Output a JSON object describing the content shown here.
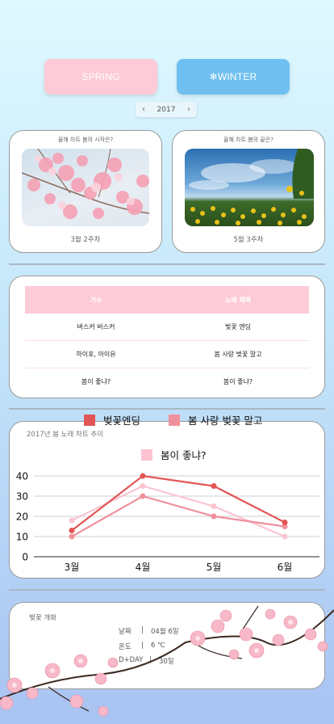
{
  "season_buttons": {
    "spring": "SPRING",
    "winter": "❄WINTER"
  },
  "year_selector": {
    "prev": "‹",
    "year": "2017",
    "next": "›"
  },
  "start_card": {
    "caption": "올해 차트 봄의 시작은?",
    "value": "3월 2주차"
  },
  "end_card": {
    "caption": "올해 차트 봄의 끝은?",
    "value": "5월 3주차"
  },
  "table": {
    "headers": [
      "가수",
      "노래 제목"
    ],
    "rows": [
      [
        "버스커 버스커",
        "벚꽃 엔딩"
      ],
      [
        "하이포, 아이유",
        "봄 사랑 벚꽃 말고"
      ],
      [
        "봄이 좋냐?",
        "봄이 좋냐?"
      ]
    ]
  },
  "chart_data": {
    "type": "line",
    "title": "2017년 봄 노래 차트 추이",
    "categories": [
      "3월",
      "4월",
      "5월",
      "6월"
    ],
    "ylim": [
      0,
      40
    ],
    "yticks": [
      "0",
      "10",
      "20",
      "30",
      "40"
    ],
    "legend_position": "top",
    "grid": true,
    "series": [
      {
        "name": "벚꽃엔딩",
        "color": "#e25555",
        "values": [
          13,
          40,
          35,
          17
        ]
      },
      {
        "name": "봄 사랑 벚꽃 말고",
        "color": "#f0909c",
        "values": [
          10,
          30,
          20,
          15
        ]
      },
      {
        "name": "봄이 좋냐?",
        "color": "#fcc4d1",
        "values": [
          18,
          35,
          25,
          10
        ]
      }
    ]
  },
  "bloom_card": {
    "title": "벚꽃 개화",
    "rows": [
      {
        "label": "날짜",
        "sep": "|",
        "value": "04월 6일"
      },
      {
        "label": "온도",
        "sep": "|",
        "value": "6 ℃"
      },
      {
        "label": "D+DAY",
        "sep": "|",
        "value": "30일"
      }
    ]
  },
  "colors": {
    "accent_pink": "#fdcbd7",
    "accent_blue": "#6fc0f0"
  }
}
